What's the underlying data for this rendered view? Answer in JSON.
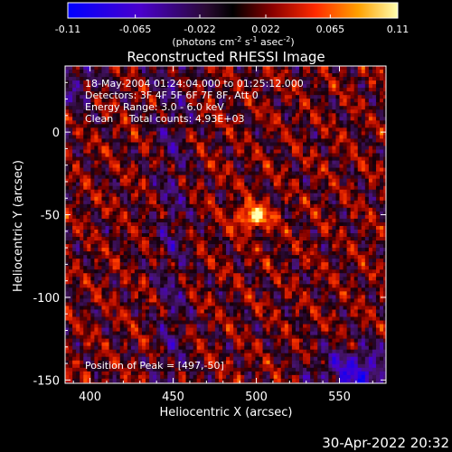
{
  "chart_data": {
    "type": "heatmap",
    "title": "Reconstructed RHESSI Image",
    "xlabel": "Heliocentric X (arcsec)",
    "ylabel": "Heliocentric Y (arcsec)",
    "xlim": [
      385,
      578
    ],
    "ylim": [
      -152,
      40
    ],
    "xticks": [
      400,
      450,
      500,
      550
    ],
    "yticks": [
      0,
      -50,
      -100,
      -150
    ],
    "colorbar": {
      "min": -0.11,
      "max": 0.11,
      "ticks": [
        "-0.11",
        "-0.065",
        "-0.022",
        "0.022",
        "0.065",
        "0.11"
      ],
      "label_main": "(photons cm",
      "label_sup1": "-2",
      "label_mid1": " s",
      "label_sup2": "-1",
      "label_mid2": " asec",
      "label_sup3": "-2",
      "label_end": ")"
    },
    "annotations": [
      "18-May-2004 01:24:04.000 to 01:25:12.000",
      "Detectors: 3F 4F 5F 6F 7F 8F, Att 0",
      "Energy Range: 3.0 - 6.0 keV",
      "Clean     Total counts: 4.93E+03"
    ],
    "peak_label": "Position of Peak = [497,-50]",
    "peak": {
      "x": 497,
      "y": -50,
      "value": 0.11
    },
    "grid_resolution": "2 arcsec pixels"
  },
  "footer": {
    "timestamp": "30-Apr-2022 20:32"
  }
}
